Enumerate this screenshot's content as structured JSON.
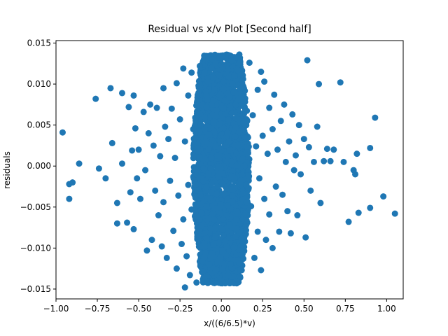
{
  "chart_data": {
    "type": "scatter",
    "title": "Residual vs x/v Plot [Second half]",
    "xlabel": "x/((6/6.5)*v)",
    "ylabel": "residuals",
    "xlim": [
      -1.0,
      1.1
    ],
    "ylim": [
      -0.0162,
      0.0153
    ],
    "xticks": [
      -1.0,
      -0.75,
      -0.5,
      -0.25,
      0.0,
      0.25,
      0.5,
      0.75,
      1.0
    ],
    "xtick_labels": [
      "−1.00",
      "−0.75",
      "−0.50",
      "−0.25",
      "0.00",
      "0.25",
      "0.50",
      "0.75",
      "1.00"
    ],
    "yticks": [
      -0.015,
      -0.01,
      -0.005,
      0.0,
      0.005,
      0.01,
      0.015
    ],
    "ytick_labels": [
      "−0.015",
      "−0.010",
      "−0.005",
      "0.000",
      "0.005",
      "0.010",
      "0.015"
    ],
    "grid": false,
    "legend": "none",
    "marker_color": "#1f77b4",
    "series": [
      {
        "dense_core": {
          "x_range": [
            -0.17,
            0.17
          ],
          "y_range": [
            -0.0143,
            0.0136
          ]
        },
        "points": [
          [
            -0.96,
            0.0041
          ],
          [
            -0.92,
            -0.0022
          ],
          [
            -0.92,
            -0.004
          ],
          [
            -0.9,
            -0.002
          ],
          [
            -0.86,
            0.0003
          ],
          [
            -0.76,
            0.0082
          ],
          [
            -0.74,
            -0.0003
          ],
          [
            -0.7,
            -0.0015
          ],
          [
            -0.67,
            0.0095
          ],
          [
            -0.66,
            0.0028
          ],
          [
            -0.63,
            -0.0045
          ],
          [
            -0.63,
            -0.007
          ],
          [
            -0.6,
            0.0089
          ],
          [
            -0.6,
            0.0003
          ],
          [
            -0.57,
            -0.0069
          ],
          [
            -0.56,
            0.0072
          ],
          [
            -0.55,
            -0.0032
          ],
          [
            -0.53,
            0.0086
          ],
          [
            -0.54,
            0.0019
          ],
          [
            -0.53,
            -0.0077
          ],
          [
            -0.52,
            0.0046
          ],
          [
            -0.51,
            -0.0015
          ],
          [
            -0.5,
            0.002
          ],
          [
            -0.49,
            -0.004
          ],
          [
            -0.47,
            0.0066
          ],
          [
            -0.46,
            -0.0005
          ],
          [
            -0.45,
            -0.0103
          ],
          [
            -0.44,
            0.004
          ],
          [
            -0.43,
            0.0075
          ],
          [
            -0.42,
            -0.009
          ],
          [
            -0.41,
            0.0025
          ],
          [
            -0.4,
            -0.003
          ],
          [
            -0.39,
            0.0071
          ],
          [
            -0.38,
            -0.006
          ],
          [
            -0.37,
            0.0012
          ],
          [
            -0.36,
            -0.0098
          ],
          [
            -0.35,
            0.0095
          ],
          [
            -0.35,
            -0.0044
          ],
          [
            -0.34,
            0.0048
          ],
          [
            -0.33,
            -0.0112
          ],
          [
            -0.32,
            0.0033
          ],
          [
            -0.31,
            -0.0018
          ],
          [
            -0.3,
            0.007
          ],
          [
            -0.29,
            -0.0079
          ],
          [
            -0.28,
            0.001
          ],
          [
            -0.27,
            -0.0125
          ],
          [
            -0.27,
            0.0101
          ],
          [
            -0.26,
            -0.0036
          ],
          [
            -0.25,
            0.0057
          ],
          [
            -0.24,
            -0.0095
          ],
          [
            -0.23,
            0.0119
          ],
          [
            -0.23,
            -0.0065
          ],
          [
            -0.22,
            0.003
          ],
          [
            -0.21,
            -0.011
          ],
          [
            -0.2,
            0.0086
          ],
          [
            -0.2,
            -0.0023
          ],
          [
            -0.19,
            -0.0133
          ],
          [
            -0.18,
            0.0114
          ],
          [
            -0.18,
            -0.0053
          ],
          [
            -0.17,
            0.0045
          ],
          [
            -0.22,
            -0.0148
          ],
          [
            -0.15,
            -0.0142
          ],
          [
            -0.13,
            0.0122
          ],
          [
            0.17,
            0.0126
          ],
          [
            0.18,
            -0.0049
          ],
          [
            0.19,
            0.0062
          ],
          [
            0.2,
            -0.0112
          ],
          [
            0.21,
            0.0024
          ],
          [
            0.22,
            0.0093
          ],
          [
            0.22,
            -0.008
          ],
          [
            0.23,
            -0.0015
          ],
          [
            0.24,
            0.0115
          ],
          [
            0.24,
            -0.0127
          ],
          [
            0.25,
            0.0037
          ],
          [
            0.26,
            -0.004
          ],
          [
            0.26,
            0.0103
          ],
          [
            0.27,
            -0.009
          ],
          [
            0.28,
            0.0015
          ],
          [
            0.29,
            0.0071
          ],
          [
            0.29,
            -0.0059
          ],
          [
            0.31,
            0.0045
          ],
          [
            0.31,
            -0.01
          ],
          [
            0.32,
            0.0087
          ],
          [
            0.33,
            -0.0025
          ],
          [
            0.34,
            0.002
          ],
          [
            0.35,
            -0.008
          ],
          [
            0.36,
            0.0055
          ],
          [
            0.37,
            -0.0035
          ],
          [
            0.38,
            0.0075
          ],
          [
            0.39,
            0.0005
          ],
          [
            0.4,
            -0.0055
          ],
          [
            0.41,
            0.003
          ],
          [
            0.42,
            -0.0082
          ],
          [
            0.43,
            0.0063
          ],
          [
            0.44,
            -0.0005
          ],
          [
            0.45,
            0.0013
          ],
          [
            0.46,
            -0.006
          ],
          [
            0.47,
            0.005
          ],
          [
            0.48,
            -0.001
          ],
          [
            0.5,
            0.0033
          ],
          [
            0.51,
            -0.0087
          ],
          [
            0.52,
            0.0129
          ],
          [
            0.53,
            0.0023
          ],
          [
            0.54,
            -0.003
          ],
          [
            0.56,
            0.0005
          ],
          [
            0.58,
            0.0048
          ],
          [
            0.59,
            0.01
          ],
          [
            0.6,
            -0.0045
          ],
          [
            0.62,
            0.0006
          ],
          [
            0.64,
            0.0021
          ],
          [
            0.66,
            0.0006
          ],
          [
            0.68,
            0.002
          ],
          [
            0.72,
            0.0102
          ],
          [
            0.74,
            0.0005
          ],
          [
            0.77,
            -0.0068
          ],
          [
            0.8,
            -0.0005
          ],
          [
            0.81,
            -0.001
          ],
          [
            0.82,
            0.0015
          ],
          [
            0.83,
            -0.0057
          ],
          [
            0.9,
            -0.0051
          ],
          [
            0.9,
            0.0022
          ],
          [
            0.93,
            0.0059
          ],
          [
            0.98,
            -0.0037
          ],
          [
            1.05,
            -0.0058
          ]
        ]
      }
    ]
  }
}
